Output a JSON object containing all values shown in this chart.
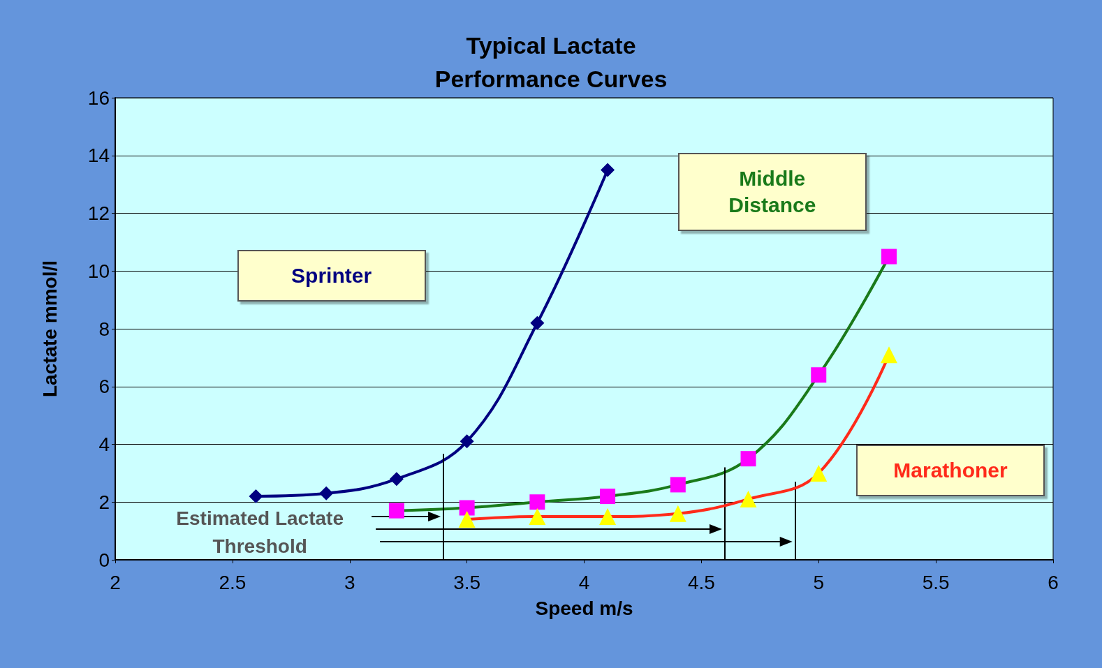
{
  "chart_data": {
    "type": "line",
    "title": "Typical Lactate\nPerformance Curves",
    "xlabel": "Speed m/s",
    "ylabel": "Lactate mmol/l",
    "xlim": [
      2,
      6
    ],
    "xticks": [
      2,
      2.5,
      3,
      3.5,
      4,
      4.5,
      5,
      5.5,
      6
    ],
    "ylim": [
      0,
      16
    ],
    "yticks": [
      0,
      2,
      4,
      6,
      8,
      10,
      12,
      14,
      16
    ],
    "grid": "y",
    "legend": false,
    "series": [
      {
        "name": "Sprinter",
        "color": "#000080",
        "marker": "diamond",
        "x": [
          2.6,
          2.9,
          3.2,
          3.5,
          3.8,
          4.1
        ],
        "values": [
          2.2,
          2.3,
          2.8,
          4.1,
          8.2,
          13.5
        ]
      },
      {
        "name": "Middle\nDistance",
        "color": "#1a7a1a",
        "colors": [
          "#ff00ff",
          "#ff00ff",
          "#ff00ff",
          "#ff00ff",
          "#ff00ff",
          "#ff00ff",
          "#ff00ff",
          "#ff00ff"
        ],
        "marker": "square",
        "x": [
          3.2,
          3.5,
          3.8,
          4.1,
          4.4,
          4.7,
          5.0,
          5.3
        ],
        "values": [
          1.7,
          1.8,
          2.0,
          2.2,
          2.6,
          3.5,
          6.4,
          10.5
        ]
      },
      {
        "name": "Marathoner",
        "color": "#ff2a1a",
        "colors": [
          "#ffff00",
          "#ffff00",
          "#ffff00",
          "#ffff00",
          "#ffff00",
          "#ffff00",
          "#ffff00"
        ],
        "marker": "triangle",
        "x": [
          3.5,
          3.8,
          4.1,
          4.4,
          4.7,
          5.0,
          5.3
        ],
        "values": [
          1.4,
          1.5,
          1.5,
          1.6,
          2.1,
          3.0,
          7.1
        ]
      }
    ],
    "ref_lines": [
      {
        "axis": "x",
        "value": 3.4,
        "color": "#000000"
      },
      {
        "axis": "x",
        "value": 4.6,
        "color": "#000000"
      },
      {
        "axis": "x",
        "value": 4.9,
        "color": "#000000"
      }
    ],
    "annotations": [
      "Estimated Lactate\nThreshold"
    ]
  }
}
